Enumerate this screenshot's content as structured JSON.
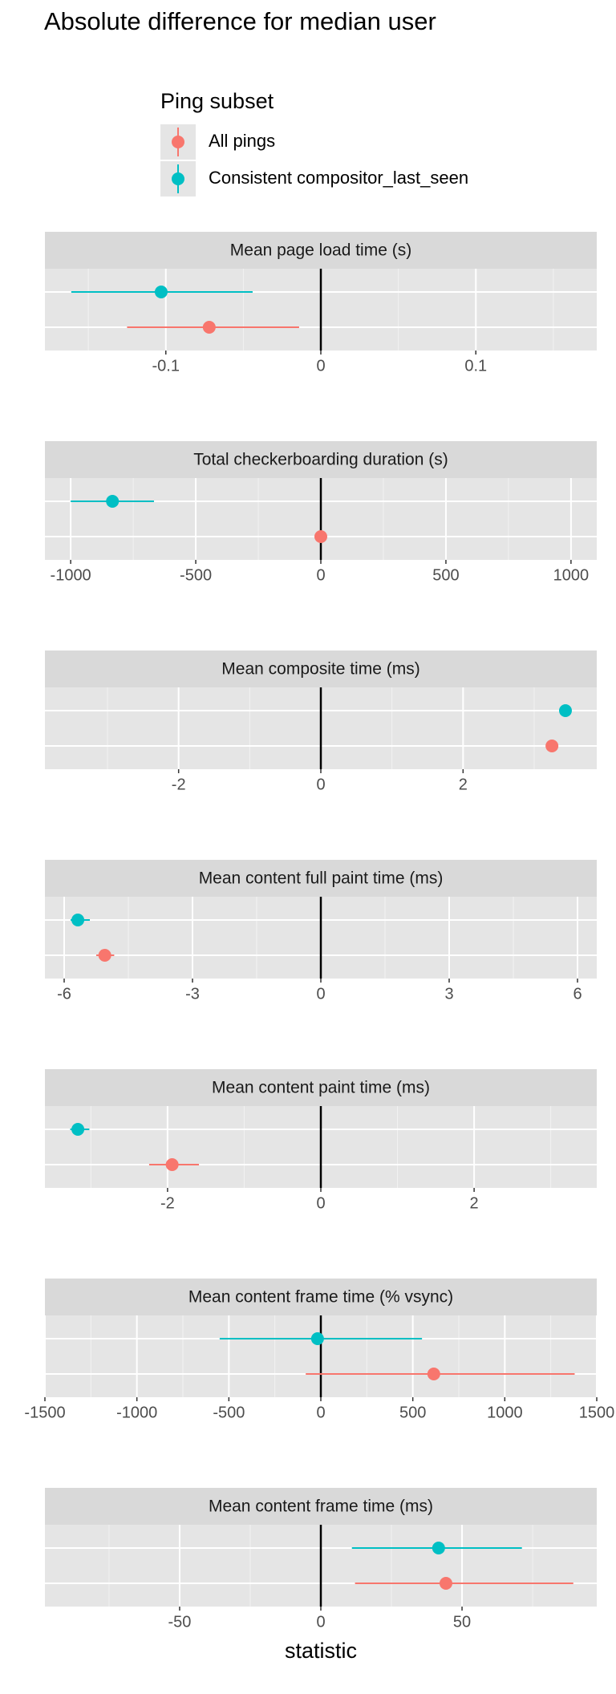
{
  "chart_data": {
    "type": "pointrange",
    "title": "Absolute difference for median user",
    "legend_title": "Ping subset",
    "x_label": "statistic",
    "vline": 0,
    "categories": [
      "Mean page load time (s)",
      "Total checkerboarding duration (s)",
      "Mean composite time (ms)",
      "Mean content full paint time (ms)",
      "Mean content paint time (ms)",
      "Mean content frame time (% vsync)",
      "Mean content frame time (ms)"
    ],
    "panels": [
      {
        "xlim": [
          -0.178,
          0.178
        ],
        "xticks": [
          -0.1,
          0.0,
          0.1
        ]
      },
      {
        "xlim": [
          -1103,
          1103
        ],
        "xticks": [
          -1000,
          -500,
          0,
          500,
          1000
        ]
      },
      {
        "xlim": [
          -3.88,
          3.88
        ],
        "xticks": [
          -2,
          0,
          2
        ]
      },
      {
        "xlim": [
          -6.45,
          6.45
        ],
        "xticks": [
          -6,
          -3,
          0,
          3,
          6
        ]
      },
      {
        "xlim": [
          -3.6,
          3.6
        ],
        "xticks": [
          -2,
          0,
          2
        ]
      },
      {
        "xlim": [
          -1500,
          1500
        ],
        "xticks": [
          -1500,
          -1000,
          -500,
          0,
          500,
          1000,
          1500
        ]
      },
      {
        "xlim": [
          -97.7,
          97.7
        ],
        "xticks": [
          -50,
          0,
          50
        ]
      }
    ],
    "series": [
      {
        "name": "All pings",
        "color": "#F8766D",
        "values": [
          -0.072,
          0,
          3.25,
          -5.05,
          -1.94,
          614,
          44.3
        ],
        "lower": [
          -0.125,
          0,
          3.25,
          -5.25,
          -2.24,
          -82,
          12.1
        ],
        "upper": [
          -0.014,
          0,
          3.25,
          -4.83,
          -1.59,
          1380,
          89.4
        ]
      },
      {
        "name": "Consistent compositor_last_seen",
        "color": "#00BFC4",
        "values": [
          -0.103,
          -833,
          3.44,
          -5.68,
          -3.17,
          -18,
          41.7
        ],
        "lower": [
          -0.161,
          -1000,
          3.44,
          -5.85,
          -3.27,
          -550,
          11
        ],
        "upper": [
          -0.044,
          -667,
          3.44,
          -5.4,
          -3.02,
          550,
          71.2
        ]
      }
    ]
  }
}
